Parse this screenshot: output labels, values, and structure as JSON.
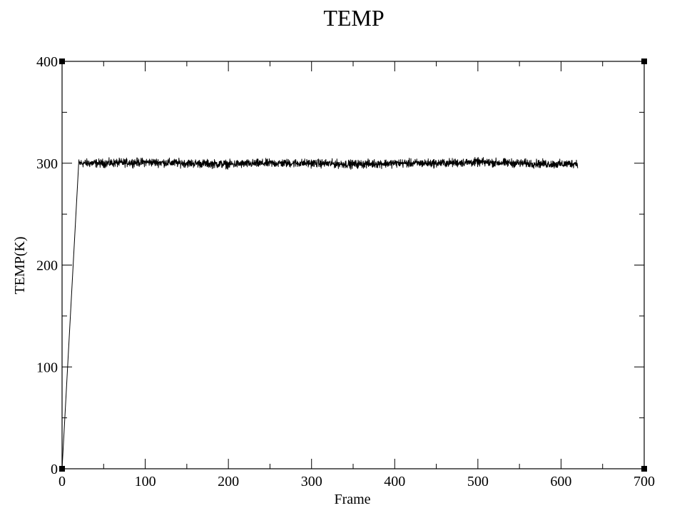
{
  "chart_data": {
    "type": "line",
    "title": "TEMP",
    "xlabel": "Frame",
    "ylabel": "TEMP(K)",
    "xlim": [
      0,
      700
    ],
    "ylim": [
      0,
      400
    ],
    "x_major_ticks": [
      0,
      100,
      200,
      300,
      400,
      500,
      600,
      700
    ],
    "y_major_ticks": [
      0,
      100,
      200,
      300,
      400
    ],
    "x_minor_step": 50,
    "y_minor_step": 50,
    "grid": false,
    "legend": "none",
    "series_color": "#000000",
    "series": [
      {
        "points": [
          [
            0,
            0
          ],
          [
            5,
            75
          ],
          [
            10,
            150
          ],
          [
            15,
            225
          ],
          [
            20,
            300
          ],
          [
            50,
            300
          ],
          [
            100,
            301
          ],
          [
            150,
            300
          ],
          [
            200,
            299
          ],
          [
            250,
            300
          ],
          [
            300,
            300
          ],
          [
            350,
            299
          ],
          [
            400,
            300
          ],
          [
            450,
            300
          ],
          [
            500,
            301
          ],
          [
            550,
            300
          ],
          [
            600,
            299
          ],
          [
            620,
            300
          ]
        ],
        "noise_amplitude": 6,
        "noise_start": 20
      }
    ]
  }
}
